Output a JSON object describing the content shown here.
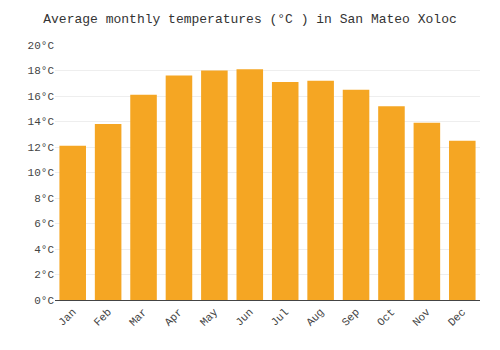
{
  "chart_data": {
    "type": "bar",
    "title": "Average monthly temperatures (°C ) in San Mateo Xoloc",
    "categories": [
      "Jan",
      "Feb",
      "Mar",
      "Apr",
      "May",
      "Jun",
      "Jul",
      "Aug",
      "Sep",
      "Oct",
      "Nov",
      "Dec"
    ],
    "values": [
      12.1,
      13.8,
      16.1,
      17.6,
      18.0,
      18.1,
      17.1,
      17.2,
      16.5,
      15.2,
      13.9,
      12.5
    ],
    "color": "#F5A623",
    "ylim": [
      0,
      20
    ],
    "yticks": [
      {
        "value": 0,
        "label": "0°C"
      },
      {
        "value": 2,
        "label": "2°C"
      },
      {
        "value": 4,
        "label": "4°C"
      },
      {
        "value": 6,
        "label": "6°C"
      },
      {
        "value": 8,
        "label": "8°C"
      },
      {
        "value": 10,
        "label": "10°C"
      },
      {
        "value": 12,
        "label": "12°C"
      },
      {
        "value": 14,
        "label": "14°C"
      },
      {
        "value": 16,
        "label": "16°C"
      },
      {
        "value": 18,
        "label": "18°C"
      },
      {
        "value": 20,
        "label": "20°C"
      }
    ],
    "grid": true
  }
}
